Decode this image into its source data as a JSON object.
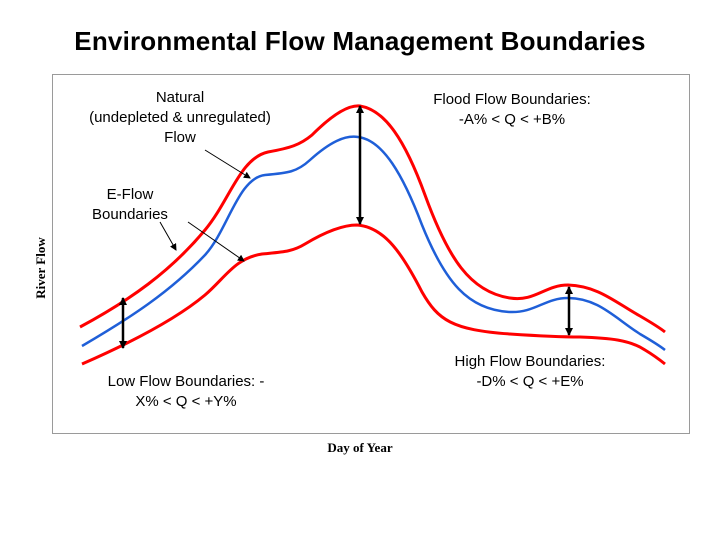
{
  "title": "Environmental Flow Management Boundaries",
  "axes": {
    "ylabel": "River Flow",
    "xlabel": "Day of Year"
  },
  "annotations": {
    "natural": [
      "Natural",
      "(undepleted & unregulated)",
      "Flow"
    ],
    "eflow": [
      "E-Flow",
      "Boundaries"
    ],
    "flood": [
      "Flood Flow Boundaries:",
      "-A% < Q < +B%"
    ],
    "low": [
      "Low Flow Boundaries: -",
      "X% < Q < +Y%"
    ],
    "high": [
      "High Flow Boundaries:",
      "-D% < Q < +E%"
    ]
  },
  "colors": {
    "boundary": "#ff0000",
    "natural": "#1f5fd8",
    "arrow": "#000000",
    "frame": "#9a9a9a"
  }
}
